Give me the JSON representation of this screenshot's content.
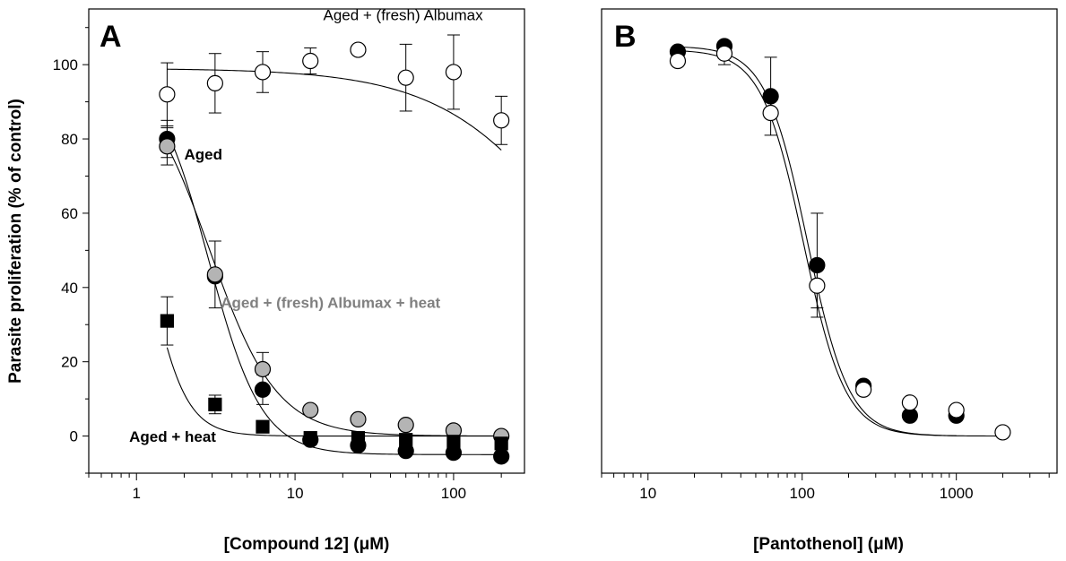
{
  "figure": {
    "ylabel": "Parasite proliferation (% of control)"
  },
  "chart_data": [
    {
      "type": "scatter",
      "panel": "A",
      "xlabel": "[Compound 12] (μM)",
      "ylabel": "Parasite proliferation (% of control)",
      "xscale": "log",
      "xlim": [
        0.5,
        280
      ],
      "ylim": [
        -10,
        115
      ],
      "xticks": [
        1,
        10,
        100
      ],
      "xtick_labels": [
        "1",
        "10",
        "100"
      ],
      "yticks": [
        0,
        20,
        40,
        60,
        80,
        100
      ],
      "ytick_labels": [
        "0",
        "20",
        "40",
        "60",
        "80",
        "100"
      ],
      "grid": false,
      "legend": "none",
      "annotations": [
        {
          "text": "Aged + (fresh) Albumax",
          "x": 48,
          "y": 112,
          "bold": false,
          "color": "#000000"
        },
        {
          "text": "Aged",
          "x": 2.0,
          "y": 74.5,
          "bold": true,
          "color": "#000000"
        },
        {
          "text": "Aged + (fresh) Albumax + heat",
          "x": 3.4,
          "y": 34.5,
          "bold": true,
          "color": "#808080"
        },
        {
          "text": "Aged + heat",
          "x": 0.9,
          "y": -1.5,
          "bold": true,
          "color": "#000000"
        }
      ],
      "series": [
        {
          "name": "Aged + (fresh) Albumax",
          "marker": "circle",
          "fill": "#ffffff",
          "stroke": "#000000",
          "x": [
            1.56,
            3.13,
            6.25,
            12.5,
            25,
            50,
            100,
            200
          ],
          "y": [
            92,
            95,
            98,
            101,
            104,
            96.5,
            98,
            85
          ],
          "err": [
            8.5,
            8,
            5.5,
            3.5,
            0,
            9,
            10,
            6.5
          ],
          "fit": {
            "top": 99,
            "bottom": 0,
            "ec50": 700,
            "hill": 1
          }
        },
        {
          "name": "Aged",
          "marker": "circle",
          "fill": "#000000",
          "stroke": "#000000",
          "x": [
            1.56,
            3.13,
            6.25,
            12.5,
            25,
            50,
            100,
            200
          ],
          "y": [
            80,
            43,
            12.5,
            -1,
            -2.5,
            -4,
            -4.5,
            -5.5
          ],
          "err": [
            5,
            0,
            4,
            0,
            0,
            0,
            0,
            0
          ],
          "fit": {
            "top": 100,
            "bottom": -5,
            "ec50": 2.85,
            "hill": 2.6
          }
        },
        {
          "name": "Aged + (fresh) Albumax + heat",
          "marker": "circle",
          "fill": "#b4b4b4",
          "stroke": "#000000",
          "x": [
            1.56,
            3.13,
            6.25,
            12.5,
            25,
            50,
            100,
            200
          ],
          "y": [
            78,
            43.5,
            18,
            7,
            4.5,
            3,
            1.5,
            0
          ],
          "err": [
            5,
            9,
            4.5,
            0,
            0,
            0,
            0,
            0
          ],
          "fit": {
            "top": 100,
            "bottom": 0,
            "ec50": 2.9,
            "hill": 2.05
          }
        },
        {
          "name": "Aged + heat",
          "marker": "square",
          "fill": "#000000",
          "stroke": "#000000",
          "x": [
            1.56,
            3.13,
            6.25,
            12.5,
            25,
            50,
            100,
            200
          ],
          "y": [
            31,
            8.5,
            2.5,
            -0.5,
            -0.5,
            -1,
            -1.5,
            -2
          ],
          "err": [
            6.5,
            2.5,
            0,
            0,
            0,
            0,
            0,
            0
          ],
          "fit": {
            "top": 100,
            "bottom": 0,
            "ec50": 1.13,
            "hill": 3.6
          }
        }
      ]
    },
    {
      "type": "scatter",
      "panel": "B",
      "xlabel": "[Pantothenol] (μM)",
      "ylabel": "",
      "xscale": "log",
      "xlim": [
        5,
        4500
      ],
      "ylim": [
        -10,
        115
      ],
      "xticks": [
        10,
        100,
        1000
      ],
      "xtick_labels": [
        "10",
        "100",
        "1000"
      ],
      "yticks": [],
      "ytick_labels": [],
      "grid": false,
      "legend": "none",
      "annotations": [],
      "series": [
        {
          "name": "",
          "marker": "circle",
          "fill": "#000000",
          "stroke": "#000000",
          "x": [
            15.6,
            31.3,
            62.5,
            125,
            250,
            500,
            1000
          ],
          "y": [
            103.5,
            105,
            91.5,
            46,
            13.5,
            5.5,
            5.5
          ],
          "err": [
            0,
            0,
            10.5,
            14,
            0,
            0,
            0
          ],
          "fit": {
            "top": 105,
            "bottom": 0,
            "ec50": 108,
            "hill": 3.2
          }
        },
        {
          "name": "",
          "marker": "circle",
          "fill": "#ffffff",
          "stroke": "#000000",
          "x": [
            15.6,
            31.3,
            62.5,
            125,
            250,
            500,
            1000,
            2000
          ],
          "y": [
            101,
            103,
            87,
            40.5,
            12.5,
            9,
            7,
            1
          ],
          "err": [
            0,
            3,
            0,
            6,
            0,
            0,
            0,
            0
          ],
          "fit": {
            "top": 104,
            "bottom": 0,
            "ec50": 102,
            "hill": 3.2
          }
        }
      ]
    }
  ]
}
